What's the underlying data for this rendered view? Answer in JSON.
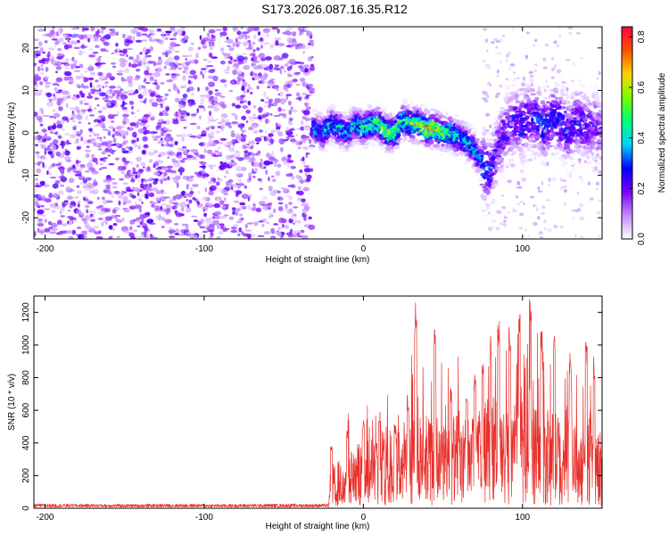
{
  "title": "S173.2026.087.16.35.R12",
  "colors": {
    "background": "#ffffff",
    "axis": "#000000",
    "trace": "#e8302c",
    "colormap": [
      "#ffffff",
      "#c38cff",
      "#7b00ff",
      "#0000ff",
      "#00d2ff",
      "#00ff78",
      "#78ff00",
      "#ffd200",
      "#ff5000",
      "#ff0040"
    ]
  },
  "chart_data": [
    {
      "type": "heatmap",
      "name": "spectrogram",
      "xlabel": "Height of straight line (km)",
      "ylabel": "Frequency (Hz)",
      "xlim": [
        -207,
        150
      ],
      "ylim": [
        -25,
        25
      ],
      "xticks": [
        -200,
        -100,
        0,
        100
      ],
      "xtick_labels": [
        "-200",
        "-100",
        "0",
        "100"
      ],
      "yticks": [
        -20,
        -10,
        0,
        10,
        20
      ],
      "ytick_labels": [
        "-20",
        "-10",
        "0",
        "10",
        "20"
      ],
      "noise_region": {
        "x": [
          -207,
          -32
        ],
        "y": [
          -25,
          25
        ],
        "typical_amplitude": 0.12
      },
      "signal_track": {
        "x": [
          -32,
          -25,
          -20,
          -15,
          -10,
          -5,
          0,
          5,
          10,
          15,
          20,
          25,
          30,
          35,
          40,
          45,
          50,
          55,
          60,
          65,
          70,
          75,
          80,
          85,
          90,
          95,
          100,
          105,
          110,
          115,
          120,
          125,
          130,
          135,
          140,
          145,
          150
        ],
        "frequency": [
          1,
          0,
          2,
          1,
          0,
          2,
          1,
          2,
          2,
          0,
          0,
          3,
          2,
          2,
          1,
          1,
          0,
          0,
          -1,
          -2,
          -4,
          -7,
          -10,
          -3,
          1,
          3,
          2,
          4,
          3,
          1,
          4,
          2,
          0,
          3,
          1,
          2,
          0
        ],
        "amplitude": [
          0.35,
          0.4,
          0.42,
          0.45,
          0.38,
          0.44,
          0.5,
          0.48,
          0.55,
          0.62,
          0.58,
          0.5,
          0.55,
          0.6,
          0.72,
          0.65,
          0.55,
          0.5,
          0.45,
          0.42,
          0.4,
          0.38,
          0.3,
          0.22,
          0.25,
          0.28,
          0.3,
          0.27,
          0.3,
          0.33,
          0.28,
          0.3,
          0.25,
          0.28,
          0.25,
          0.22,
          0.2
        ]
      },
      "colorbar": {
        "label": "Normalized spectral amplitude",
        "range": [
          0.0,
          0.84
        ],
        "ticks": [
          0.0,
          0.2,
          0.4,
          0.6,
          0.8
        ],
        "tick_labels": [
          "0.0",
          "0.2",
          "0.4",
          "0.6",
          "0.8"
        ]
      }
    },
    {
      "type": "line",
      "name": "snr",
      "xlabel": "Height of straight line (km)",
      "ylabel": "SNR (10 * v/v)",
      "xlim": [
        -207,
        150
      ],
      "ylim": [
        0,
        1300
      ],
      "xticks": [
        -200,
        -100,
        0,
        100
      ],
      "xtick_labels": [
        "-200",
        "-100",
        "0",
        "100"
      ],
      "yticks": [
        0,
        200,
        400,
        600,
        800,
        1000,
        1200
      ],
      "ytick_labels": [
        "0",
        "200",
        "400",
        "600",
        "800",
        "1000",
        "1200"
      ],
      "series": [
        {
          "name": "SNR",
          "x": [
            -207,
            -180,
            -150,
            -120,
            -90,
            -60,
            -40,
            -22,
            -20,
            -18,
            -15,
            -10,
            -5,
            0,
            5,
            10,
            15,
            20,
            25,
            30,
            33,
            35,
            40,
            45,
            50,
            55,
            60,
            65,
            70,
            75,
            80,
            85,
            90,
            95,
            100,
            105,
            110,
            115,
            120,
            125,
            130,
            135,
            140,
            145,
            150
          ],
          "baseline": [
            15,
            15,
            14,
            15,
            14,
            15,
            15,
            15,
            120,
            150,
            170,
            200,
            220,
            240,
            260,
            270,
            290,
            300,
            310,
            330,
            340,
            330,
            330,
            320,
            330,
            340,
            320,
            310,
            330,
            330,
            350,
            360,
            360,
            370,
            380,
            370,
            360,
            350,
            340,
            330,
            300,
            290,
            280,
            260,
            250
          ],
          "peaks": [
            {
              "x": -20,
              "y": 380
            },
            {
              "x": -10,
              "y": 480
            },
            {
              "x": 0,
              "y": 560
            },
            {
              "x": 10,
              "y": 600
            },
            {
              "x": 20,
              "y": 520
            },
            {
              "x": 28,
              "y": 700
            },
            {
              "x": 33,
              "y": 1260
            },
            {
              "x": 45,
              "y": 1130
            },
            {
              "x": 55,
              "y": 760
            },
            {
              "x": 65,
              "y": 690
            },
            {
              "x": 70,
              "y": 840
            },
            {
              "x": 75,
              "y": 900
            },
            {
              "x": 80,
              "y": 1060
            },
            {
              "x": 85,
              "y": 1150
            },
            {
              "x": 92,
              "y": 1110
            },
            {
              "x": 98,
              "y": 1190
            },
            {
              "x": 105,
              "y": 1280
            },
            {
              "x": 112,
              "y": 1100
            },
            {
              "x": 120,
              "y": 1070
            },
            {
              "x": 130,
              "y": 960
            },
            {
              "x": 140,
              "y": 1040
            },
            {
              "x": 145,
              "y": 930
            }
          ]
        }
      ]
    }
  ]
}
